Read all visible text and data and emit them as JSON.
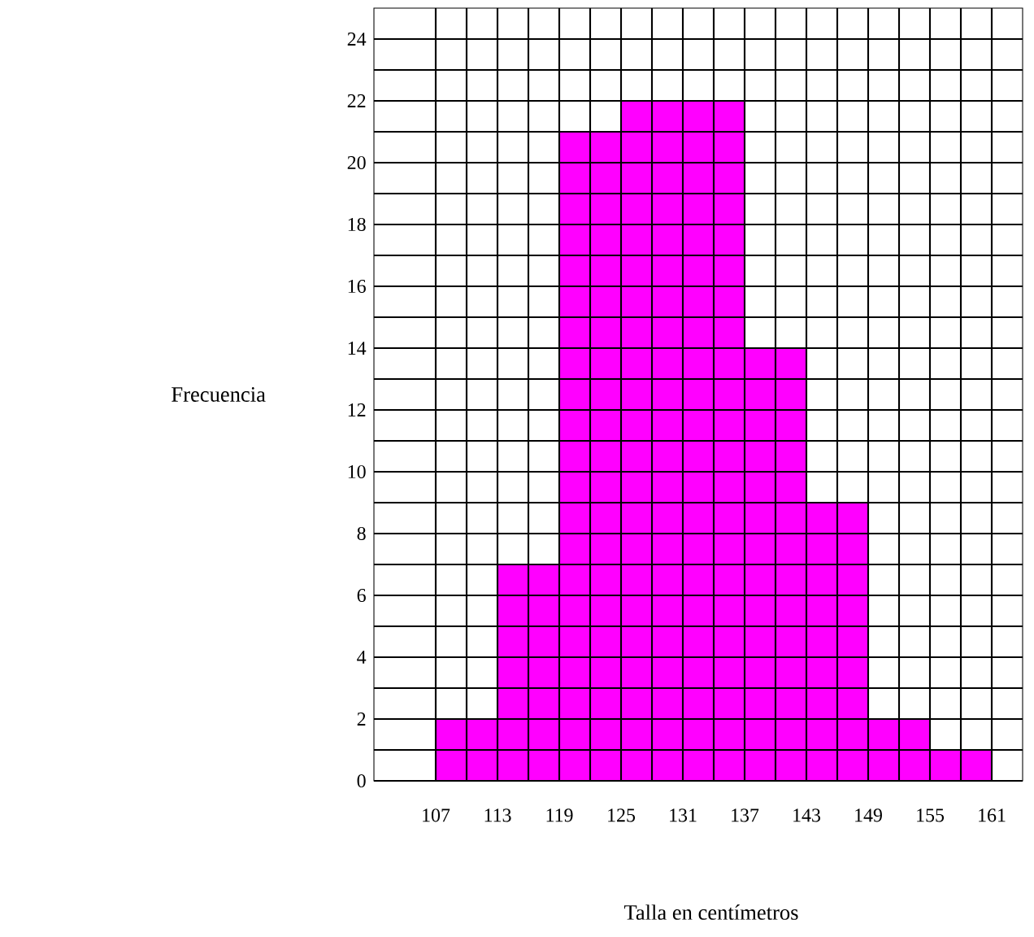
{
  "chart_data": {
    "type": "histogram",
    "bins": [
      107,
      113,
      119,
      125,
      131,
      137,
      143,
      149,
      155,
      161
    ],
    "values": [
      2,
      7,
      21,
      22,
      22,
      14,
      9,
      2,
      1
    ],
    "color": "#ff00ff",
    "xlabel": "Talla en centímetros",
    "ylabel": "Frecuencia",
    "xlim": [
      101,
      164
    ],
    "ylim": [
      0,
      25
    ],
    "xticks": [
      107,
      113,
      119,
      125,
      131,
      137,
      143,
      149,
      155,
      161
    ],
    "yticks": [
      0,
      2,
      4,
      6,
      8,
      10,
      12,
      14,
      16,
      18,
      20,
      22,
      24
    ],
    "grid": true
  }
}
